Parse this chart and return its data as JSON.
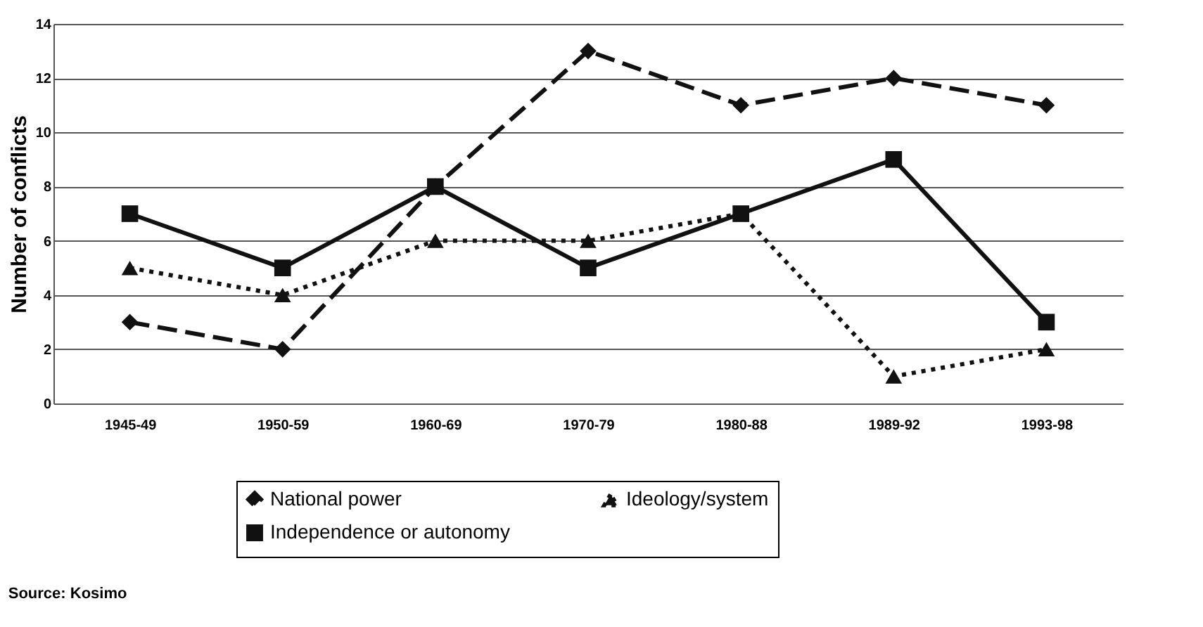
{
  "chart_data": {
    "type": "line",
    "ylabel": "Number of conflicts",
    "categories": [
      "1945-49",
      "1950-59",
      "1960-69",
      "1970-79",
      "1980-88",
      "1989-92",
      "1993-98"
    ],
    "series": [
      {
        "name": "National power",
        "color": "#111111",
        "values": [
          3,
          2,
          8,
          13,
          11,
          12,
          11
        ],
        "marker": "diamond",
        "line_style": "dashed"
      },
      {
        "name": "Independence or autonomy",
        "color": "#111111",
        "values": [
          7,
          5,
          8,
          5,
          7,
          9,
          3
        ],
        "marker": "square",
        "line_style": "solid"
      },
      {
        "name": "Ideology/system",
        "color": "#111111",
        "values": [
          5,
          4,
          6,
          6,
          7,
          1,
          2
        ],
        "marker": "triangle",
        "line_style": "dotted"
      }
    ],
    "ylim": [
      0,
      14
    ],
    "yticks": [
      0,
      2,
      4,
      6,
      8,
      10,
      12,
      14
    ],
    "grid": "y",
    "legend": "bottom",
    "annotations": [
      "Source: Kosimo"
    ]
  }
}
